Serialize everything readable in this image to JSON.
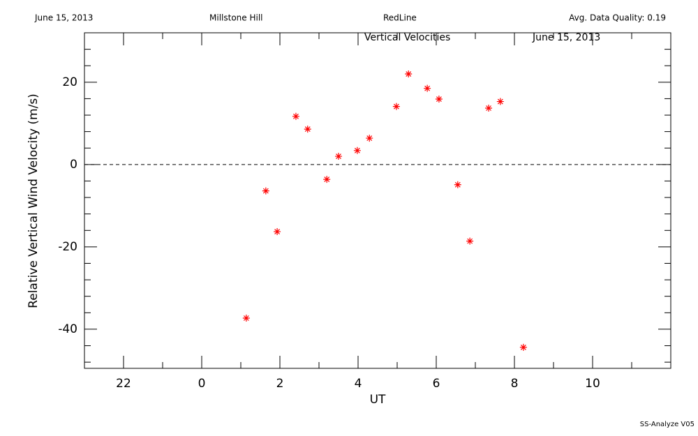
{
  "header": {
    "date": "June 15, 2013",
    "site": "Millstone Hill",
    "line": "RedLine",
    "quality": "Avg. Data Quality: 0.19"
  },
  "footer": "SS-Analyze V05",
  "chart_data": {
    "type": "scatter",
    "title": "Vertical Velocities",
    "subtitle": "June 15, 2013",
    "x_label": "UT",
    "y_label": "Relative Vertical Wind Velocity (m/s)",
    "color": "#ff0000",
    "marker": "asterisk",
    "x": [
      1.14,
      1.64,
      1.93,
      2.41,
      2.71,
      3.2,
      3.5,
      3.98,
      4.29,
      4.98,
      5.29,
      5.77,
      6.07,
      6.55,
      6.86,
      7.34,
      7.64,
      8.23
    ],
    "values": [
      -37.3,
      -6.4,
      -16.3,
      11.7,
      8.6,
      -3.6,
      2.0,
      3.4,
      6.4,
      14.1,
      22.0,
      18.5,
      15.9,
      -4.9,
      -18.6,
      13.7,
      15.3,
      -44.4
    ],
    "xlim": [
      -3,
      12
    ],
    "xticks": [
      {
        "value": -2,
        "label": "22"
      },
      0,
      2,
      4,
      6,
      8,
      10
    ],
    "minor_xticks": [
      -1,
      1,
      3,
      5,
      7,
      9,
      11
    ],
    "ylim": [
      -49.5,
      32
    ],
    "yticks": [
      -40,
      -20,
      0,
      20
    ],
    "minor_yticks": [
      -48,
      -44,
      -36,
      -32,
      -28,
      -24,
      -16,
      -12,
      -8,
      -4,
      4,
      8,
      12,
      16,
      24,
      28
    ],
    "reference_line": 0
  }
}
